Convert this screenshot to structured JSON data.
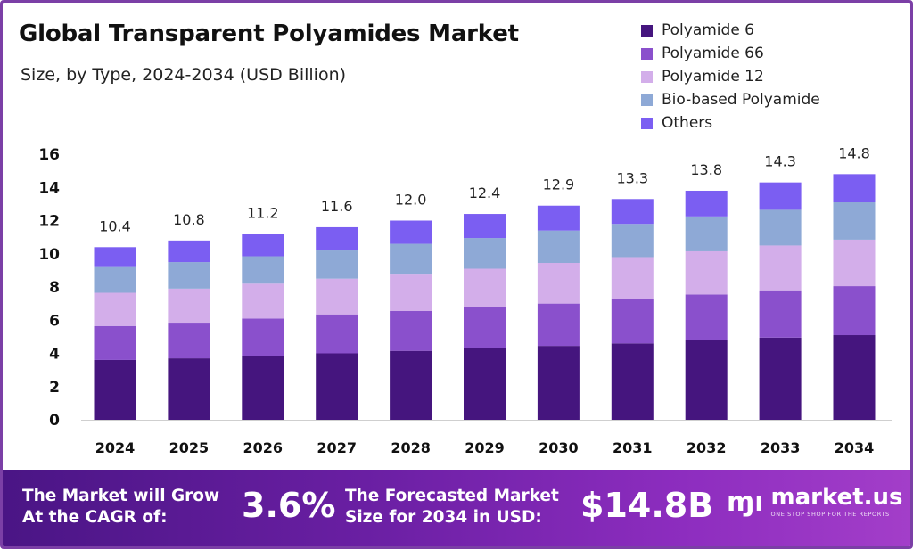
{
  "chart_data": {
    "type": "bar",
    "stacked": true,
    "title": "Global Transparent Polyamides Market",
    "subtitle": "Size, by Type, 2024-2034 (USD Billion)",
    "categories": [
      "2024",
      "2025",
      "2026",
      "2027",
      "2028",
      "2029",
      "2030",
      "2031",
      "2032",
      "2033",
      "2034"
    ],
    "totals": [
      "10.4",
      "10.8",
      "11.2",
      "11.6",
      "12.0",
      "12.4",
      "12.9",
      "13.3",
      "13.8",
      "14.3",
      "14.8"
    ],
    "series": [
      {
        "name": "Polyamide 6",
        "color": "#45157e",
        "values": [
          3.6,
          3.7,
          3.85,
          4.0,
          4.15,
          4.3,
          4.45,
          4.6,
          4.8,
          4.95,
          5.1
        ]
      },
      {
        "name": "Polyamide 66",
        "color": "#8a50cc",
        "values": [
          2.05,
          2.15,
          2.25,
          2.35,
          2.4,
          2.5,
          2.55,
          2.7,
          2.75,
          2.85,
          2.95
        ]
      },
      {
        "name": "Polyamide 12",
        "color": "#d3aeea",
        "values": [
          2.0,
          2.05,
          2.1,
          2.15,
          2.25,
          2.3,
          2.45,
          2.5,
          2.6,
          2.7,
          2.8
        ]
      },
      {
        "name": "Bio-based Polyamide",
        "color": "#8ea9d6",
        "values": [
          1.55,
          1.6,
          1.65,
          1.7,
          1.8,
          1.85,
          1.95,
          2.0,
          2.1,
          2.15,
          2.25
        ]
      },
      {
        "name": "Others",
        "color": "#7b5ef2",
        "values": [
          1.2,
          1.3,
          1.35,
          1.4,
          1.4,
          1.45,
          1.5,
          1.5,
          1.55,
          1.65,
          1.7
        ]
      }
    ],
    "ylim": [
      0,
      16
    ],
    "yticks": [
      0,
      2,
      4,
      6,
      8,
      10,
      12,
      14,
      16
    ],
    "xlabel": "",
    "ylabel": "",
    "grid": false,
    "legend_position": "top-right"
  },
  "footer": {
    "cagr_label_line1": "The Market will Grow",
    "cagr_label_line2": "At the CAGR of:",
    "cagr_value": "3.6%",
    "forecast_label_line1": "The Forecasted Market",
    "forecast_label_line2": "Size for 2034 in USD:",
    "forecast_value": "$14.8B",
    "brand_name": "market.us",
    "brand_tagline": "ONE STOP SHOP FOR THE REPORTS",
    "brand_icon": "market-us-logo-icon"
  }
}
